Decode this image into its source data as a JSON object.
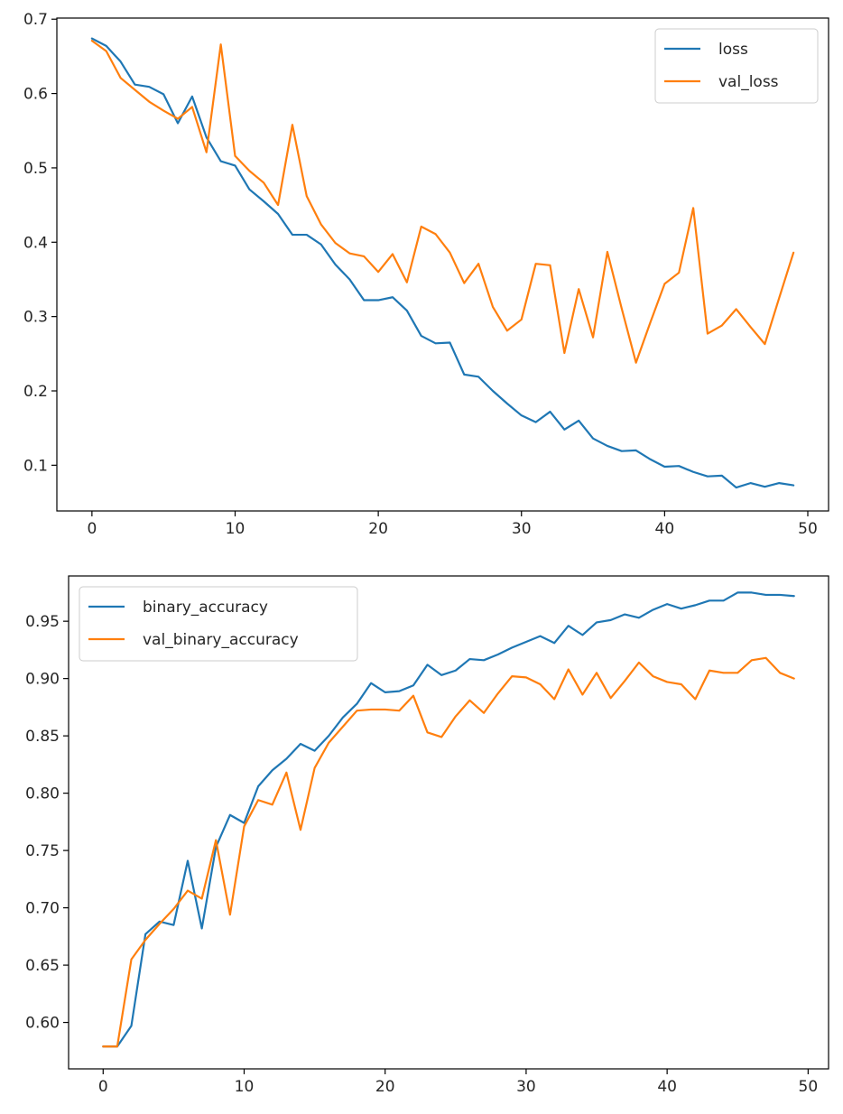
{
  "chart_data": [
    {
      "type": "line",
      "title": "",
      "xlabel": "",
      "ylabel": "",
      "xlim": [
        -2.45,
        51.45
      ],
      "ylim": [
        0.0385,
        0.7015
      ],
      "xticks": [
        0,
        10,
        20,
        30,
        40,
        50
      ],
      "xtick_labels": [
        "0",
        "10",
        "20",
        "30",
        "40",
        "50"
      ],
      "yticks": [
        0.1,
        0.2,
        0.3,
        0.4,
        0.5,
        0.6,
        0.7
      ],
      "ytick_labels": [
        "0.1",
        "0.2",
        "0.3",
        "0.4",
        "0.5",
        "0.6",
        "0.7"
      ],
      "grid": false,
      "legend_position": "top-right",
      "x": [
        0,
        1,
        2,
        3,
        4,
        5,
        6,
        7,
        8,
        9,
        10,
        11,
        12,
        13,
        14,
        15,
        16,
        17,
        18,
        19,
        20,
        21,
        22,
        23,
        24,
        25,
        26,
        27,
        28,
        29,
        30,
        31,
        32,
        33,
        34,
        35,
        36,
        37,
        38,
        39,
        40,
        41,
        42,
        43,
        44,
        45,
        46,
        47,
        48,
        49
      ],
      "series": [
        {
          "name": "loss",
          "color": "#1f77b4",
          "values": [
            0.674,
            0.664,
            0.643,
            0.612,
            0.609,
            0.599,
            0.56,
            0.596,
            0.541,
            0.509,
            0.503,
            0.471,
            0.455,
            0.438,
            0.41,
            0.41,
            0.397,
            0.37,
            0.35,
            0.322,
            0.322,
            0.326,
            0.308,
            0.274,
            0.264,
            0.265,
            0.222,
            0.219,
            0.2,
            0.183,
            0.167,
            0.158,
            0.172,
            0.148,
            0.16,
            0.136,
            0.126,
            0.119,
            0.12,
            0.108,
            0.098,
            0.099,
            0.091,
            0.085,
            0.086,
            0.07,
            0.076,
            0.071,
            0.076,
            0.073
          ]
        },
        {
          "name": "val_loss",
          "color": "#ff7f0e",
          "values": [
            0.671,
            0.657,
            0.621,
            0.605,
            0.589,
            0.577,
            0.566,
            0.582,
            0.521,
            0.666,
            0.516,
            0.496,
            0.48,
            0.45,
            0.558,
            0.462,
            0.424,
            0.399,
            0.385,
            0.381,
            0.36,
            0.384,
            0.346,
            0.421,
            0.411,
            0.386,
            0.345,
            0.371,
            0.313,
            0.281,
            0.296,
            0.371,
            0.369,
            0.251,
            0.337,
            0.272,
            0.387,
            0.311,
            0.238,
            0.292,
            0.344,
            0.359,
            0.446,
            0.277,
            0.288,
            0.31,
            0.286,
            0.263,
            0.325,
            0.386
          ]
        }
      ]
    },
    {
      "type": "line",
      "title": "",
      "xlabel": "",
      "ylabel": "",
      "xlim": [
        -2.45,
        51.45
      ],
      "ylim": [
        0.5595,
        0.9895
      ],
      "xticks": [
        0,
        10,
        20,
        30,
        40,
        50
      ],
      "xtick_labels": [
        "0",
        "10",
        "20",
        "30",
        "40",
        "50"
      ],
      "yticks": [
        0.6,
        0.65,
        0.7,
        0.75,
        0.8,
        0.85,
        0.9,
        0.95
      ],
      "ytick_labels": [
        "0.60",
        "0.65",
        "0.70",
        "0.75",
        "0.80",
        "0.85",
        "0.90",
        "0.95"
      ],
      "grid": false,
      "legend_position": "top-left",
      "x": [
        0,
        1,
        2,
        3,
        4,
        5,
        6,
        7,
        8,
        9,
        10,
        11,
        12,
        13,
        14,
        15,
        16,
        17,
        18,
        19,
        20,
        21,
        22,
        23,
        24,
        25,
        26,
        27,
        28,
        29,
        30,
        31,
        32,
        33,
        34,
        35,
        36,
        37,
        38,
        39,
        40,
        41,
        42,
        43,
        44,
        45,
        46,
        47,
        48,
        49
      ],
      "series": [
        {
          "name": "binary_accuracy",
          "color": "#1f77b4",
          "values": [
            0.579,
            0.579,
            0.597,
            0.677,
            0.688,
            0.685,
            0.741,
            0.682,
            0.753,
            0.781,
            0.774,
            0.806,
            0.82,
            0.83,
            0.843,
            0.837,
            0.85,
            0.866,
            0.878,
            0.896,
            0.888,
            0.889,
            0.894,
            0.912,
            0.903,
            0.907,
            0.917,
            0.916,
            0.921,
            0.927,
            0.932,
            0.937,
            0.931,
            0.946,
            0.938,
            0.949,
            0.951,
            0.956,
            0.953,
            0.96,
            0.965,
            0.961,
            0.964,
            0.968,
            0.968,
            0.975,
            0.975,
            0.973,
            0.973,
            0.972
          ]
        },
        {
          "name": "val_binary_accuracy",
          "color": "#ff7f0e",
          "values": [
            0.579,
            0.579,
            0.655,
            0.672,
            0.686,
            0.699,
            0.715,
            0.708,
            0.759,
            0.694,
            0.771,
            0.794,
            0.79,
            0.818,
            0.768,
            0.822,
            0.844,
            0.858,
            0.872,
            0.873,
            0.873,
            0.872,
            0.885,
            0.853,
            0.849,
            0.867,
            0.881,
            0.87,
            0.887,
            0.902,
            0.901,
            0.895,
            0.882,
            0.908,
            0.886,
            0.905,
            0.883,
            0.898,
            0.914,
            0.902,
            0.897,
            0.895,
            0.882,
            0.907,
            0.905,
            0.905,
            0.916,
            0.918,
            0.905,
            0.9
          ]
        }
      ]
    }
  ]
}
